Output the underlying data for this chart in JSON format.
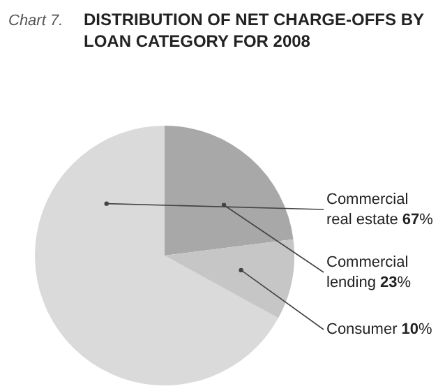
{
  "chart_data": {
    "type": "pie",
    "title": "DISTRIBUTION OF NET CHARGE-OFFS BY LOAN CATEGORY FOR 2008",
    "annotations": [
      "Chart 7."
    ],
    "categories": [
      "Commercial real estate",
      "Commercial lending",
      "Consumer"
    ],
    "values": [
      67,
      23,
      10
    ],
    "colors": [
      "#dadada",
      "#a8a8a8",
      "#c6c6c6"
    ],
    "value_labels": [
      "67%",
      "23%",
      "10%"
    ],
    "legend": false
  }
}
